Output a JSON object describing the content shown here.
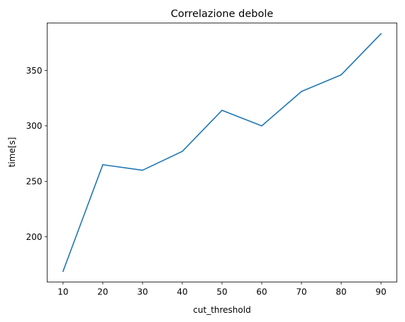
{
  "chart_data": {
    "type": "line",
    "title": "Correlazione debole",
    "xlabel": "cut_threshold",
    "ylabel": "time[s]",
    "x": [
      10,
      20,
      30,
      40,
      50,
      60,
      70,
      80,
      90
    ],
    "series": [
      {
        "values": [
          169,
          265,
          260,
          277,
          314,
          300,
          331,
          346,
          383
        ],
        "color": "#1f77b4"
      }
    ],
    "xlim": [
      6,
      94
    ],
    "ylim": [
      159.3,
      392.7
    ],
    "xticks": [
      10,
      20,
      30,
      40,
      50,
      60,
      70,
      80,
      90
    ],
    "yticks": [
      200,
      250,
      300,
      350
    ],
    "grid": false
  }
}
